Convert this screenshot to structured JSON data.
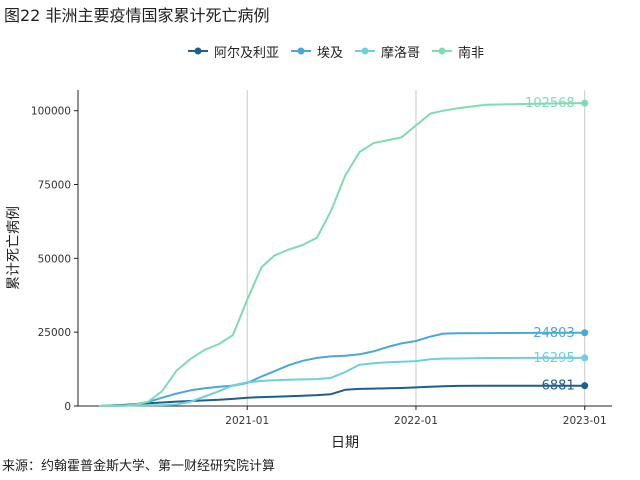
{
  "title": "图22 非洲主要疫情国家累计死亡病例",
  "source": "来源：约翰霍普金斯大学、第一财经研究院计算",
  "chart_data": {
    "type": "line",
    "title": "图22 非洲主要疫情国家累计死亡病例",
    "xlabel": "日期",
    "ylabel": "累计死亡病例",
    "x_ticks": [
      "2021-01",
      "2022-01",
      "2023-01"
    ],
    "y_ticks": [
      "0",
      "25000",
      "50000",
      "75000",
      "100000"
    ],
    "ylim": [
      0,
      107000
    ],
    "xlim": [
      "2020-01-01",
      "2023-03-01"
    ],
    "grid": "vertical major lines only",
    "legend_position": "top",
    "x": [
      "2020-02-15",
      "2020-04-01",
      "2020-05-01",
      "2020-06-01",
      "2020-07-01",
      "2020-08-01",
      "2020-09-01",
      "2020-10-01",
      "2020-11-01",
      "2020-12-01",
      "2021-01-01",
      "2021-02-01",
      "2021-03-01",
      "2021-04-01",
      "2021-05-01",
      "2021-06-01",
      "2021-07-01",
      "2021-08-01",
      "2021-09-01",
      "2021-10-01",
      "2021-11-01",
      "2021-12-01",
      "2022-01-01",
      "2022-02-01",
      "2022-03-01",
      "2022-04-01",
      "2022-06-01",
      "2022-09-01",
      "2022-12-01",
      "2023-01-01"
    ],
    "series": [
      {
        "name": "阿尔及利亚",
        "color": "#1f5f8b",
        "end_label": "6881",
        "values": [
          0,
          300,
          600,
          900,
          1200,
          1500,
          1700,
          1900,
          2100,
          2400,
          2800,
          3000,
          3100,
          3300,
          3500,
          3700,
          4000,
          5500,
          5800,
          5900,
          6000,
          6100,
          6300,
          6500,
          6700,
          6800,
          6850,
          6870,
          6878,
          6881
        ]
      },
      {
        "name": "埃及",
        "color": "#4aa8d8",
        "end_label": "24803",
        "values": [
          0,
          150,
          500,
          1400,
          2800,
          4200,
          5300,
          6000,
          6500,
          6900,
          7800,
          10000,
          11800,
          13800,
          15300,
          16300,
          16800,
          17000,
          17500,
          18500,
          20000,
          21200,
          22000,
          23500,
          24500,
          24600,
          24700,
          24750,
          24790,
          24803
        ]
      },
      {
        "name": "摩洛哥",
        "color": "#6cd0dd",
        "end_label": "16295",
        "values": [
          0,
          50,
          200,
          250,
          300,
          500,
          1500,
          3200,
          5000,
          7000,
          8000,
          8500,
          8700,
          8900,
          9000,
          9100,
          9500,
          11500,
          14000,
          14500,
          14800,
          15000,
          15200,
          15800,
          16050,
          16100,
          16250,
          16280,
          16290,
          16295
        ]
      },
      {
        "name": "南非",
        "color": "#7ddcb2",
        "end_label": "102568",
        "values": [
          0,
          100,
          300,
          1500,
          5000,
          12000,
          16000,
          19000,
          21000,
          24000,
          36000,
          47000,
          51000,
          53000,
          54500,
          57000,
          66000,
          78000,
          86000,
          89000,
          90000,
          91000,
          95000,
          99000,
          100000,
          100800,
          102000,
          102300,
          102500,
          102568
        ]
      }
    ]
  }
}
